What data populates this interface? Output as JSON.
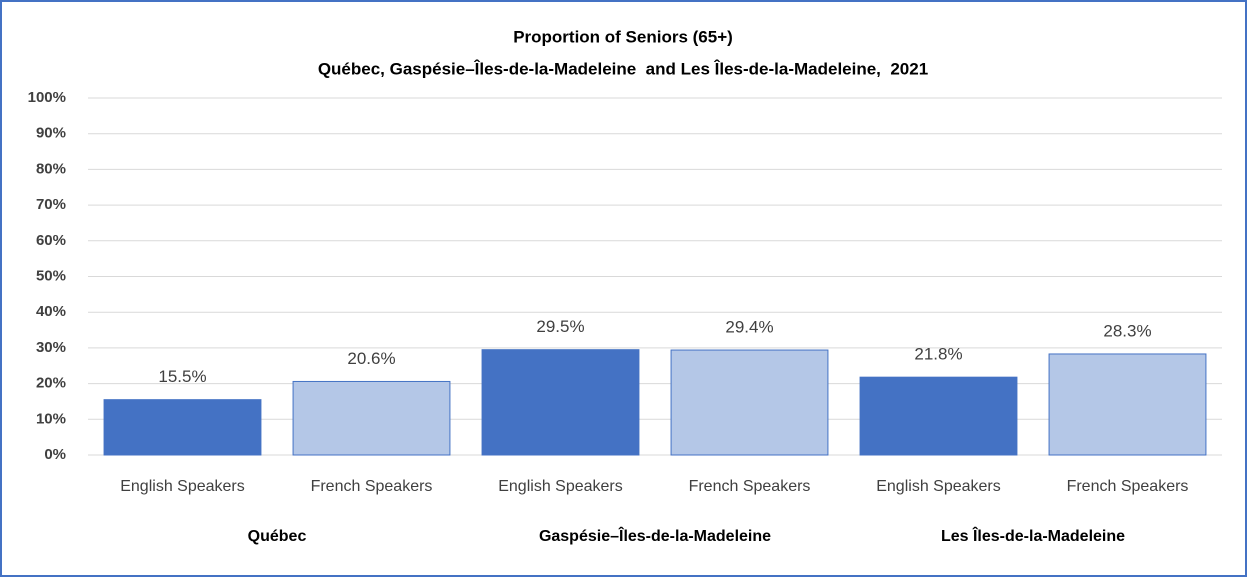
{
  "chart_data": {
    "type": "bar",
    "title": "Proportion of Seniors (65+)",
    "subtitle": "Québec, Gaspésie–Îles-de-la-Madeleine  and Les Îles-de-la-Madeleine,  2021",
    "categories": [
      "English Speakers",
      "French Speakers",
      "English Speakers",
      "French Speakers",
      "English Speakers",
      "French Speakers"
    ],
    "groups": [
      "Québec",
      "Gaspésie–Îles-de-la-Madeleine",
      "Les Îles-de-la-Madeleine"
    ],
    "values": [
      15.5,
      20.6,
      29.5,
      29.4,
      21.8,
      28.3
    ],
    "value_labels": [
      "15.5%",
      "20.6%",
      "29.5%",
      "29.4%",
      "21.8%",
      "28.3%"
    ],
    "colors": [
      "#4472c4",
      "#b4c7e7",
      "#4472c4",
      "#b4c7e7",
      "#4472c4",
      "#b4c7e7"
    ],
    "ylim": [
      0,
      100
    ],
    "yticks": [
      {
        "value": 0,
        "label": "0%"
      },
      {
        "value": 10,
        "label": "10%"
      },
      {
        "value": 20,
        "label": "20%"
      },
      {
        "value": 30,
        "label": "30%"
      },
      {
        "value": 40,
        "label": "40%"
      },
      {
        "value": 50,
        "label": "50%"
      },
      {
        "value": 60,
        "label": "60%"
      },
      {
        "value": 70,
        "label": "70%"
      },
      {
        "value": 80,
        "label": "80%"
      },
      {
        "value": 90,
        "label": "90%"
      },
      {
        "value": 100,
        "label": "100%"
      }
    ],
    "grid": true
  }
}
